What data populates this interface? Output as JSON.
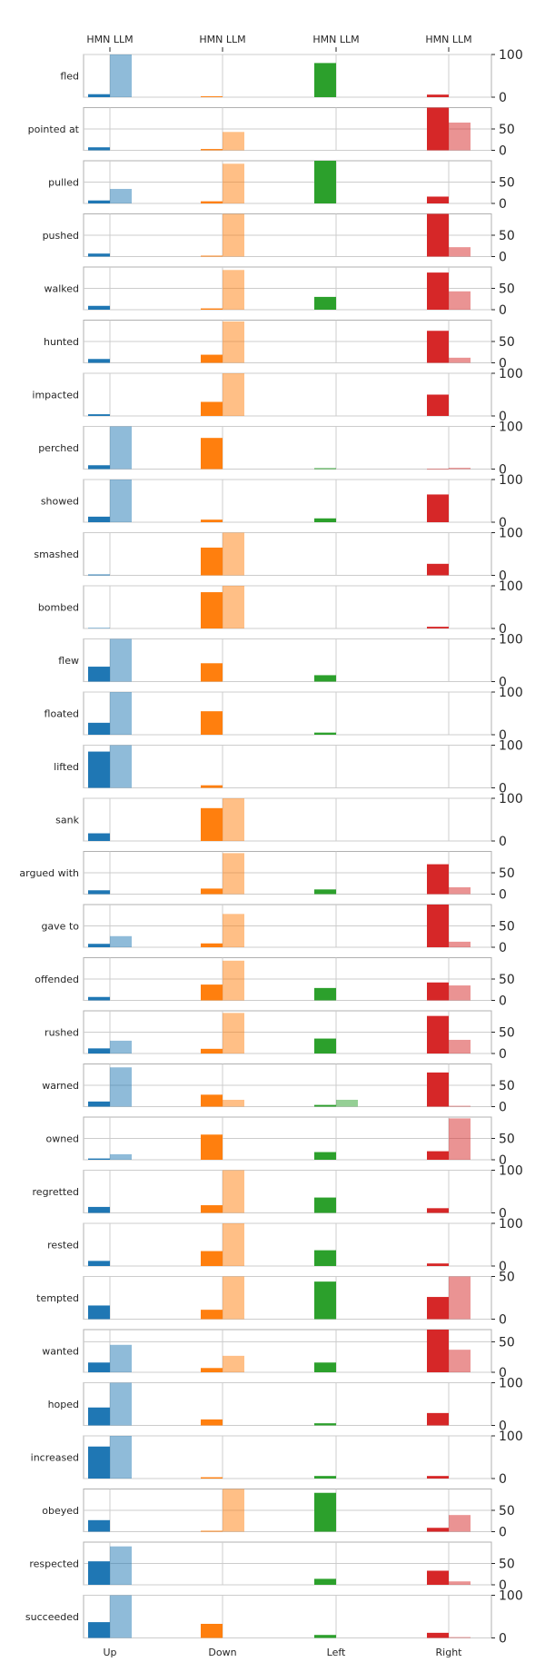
{
  "chart_data": {
    "type": "bar",
    "top_tick_labels": [
      "HMN LLM",
      "HMN LLM",
      "HMN LLM",
      "HMN LLM"
    ],
    "categories": [
      "Up",
      "Down",
      "Left",
      "Right"
    ],
    "series": [
      {
        "name": "HMN",
        "role": "human"
      },
      {
        "name": "LLM",
        "role": "model"
      }
    ],
    "colors": {
      "Up": "#1f77b4",
      "Down": "#ff7f0e",
      "Left": "#2ca02c",
      "Right": "#d62728",
      "llm_alpha": 0.5,
      "grid": "#cccccc",
      "frame": "#b0b0b0"
    },
    "grid": true,
    "panels": [
      {
        "verb": "fled",
        "ylim": [
          0,
          100
        ],
        "yticks": [
          0,
          100
        ],
        "hmn": [
          7,
          2,
          80,
          6
        ],
        "llm": [
          100,
          0,
          0,
          0
        ]
      },
      {
        "verb": "pointed at",
        "ylim": [
          0,
          100
        ],
        "yticks": [
          0,
          50
        ],
        "hmn": [
          7,
          3,
          0,
          100
        ],
        "llm": [
          0,
          43,
          0,
          65
        ]
      },
      {
        "verb": "pulled",
        "ylim": [
          0,
          100
        ],
        "yticks": [
          0,
          50
        ],
        "hmn": [
          7,
          5,
          100,
          16
        ],
        "llm": [
          34,
          93,
          0,
          0
        ]
      },
      {
        "verb": "pushed",
        "ylim": [
          0,
          100
        ],
        "yticks": [
          0,
          50
        ],
        "hmn": [
          7,
          2,
          0,
          100
        ],
        "llm": [
          0,
          100,
          0,
          22
        ]
      },
      {
        "verb": "walked",
        "ylim": [
          0,
          100
        ],
        "yticks": [
          0,
          50
        ],
        "hmn": [
          9,
          3,
          30,
          87
        ],
        "llm": [
          0,
          93,
          0,
          43
        ]
      },
      {
        "verb": "hunted",
        "ylim": [
          0,
          100
        ],
        "yticks": [
          0,
          50
        ],
        "hmn": [
          9,
          19,
          0,
          75
        ],
        "llm": [
          0,
          97,
          0,
          12
        ]
      },
      {
        "verb": "impacted",
        "ylim": [
          0,
          100
        ],
        "yticks": [
          0,
          100
        ],
        "hmn": [
          4,
          33,
          0,
          50
        ],
        "llm": [
          0,
          100,
          0,
          0
        ]
      },
      {
        "verb": "perched",
        "ylim": [
          0,
          100
        ],
        "yticks": [
          0,
          100
        ],
        "hmn": [
          9,
          73,
          2,
          1
        ],
        "llm": [
          100,
          0,
          0,
          3
        ]
      },
      {
        "verb": "showed",
        "ylim": [
          0,
          100
        ],
        "yticks": [
          0,
          100
        ],
        "hmn": [
          13,
          6,
          9,
          65
        ],
        "llm": [
          100,
          0,
          0,
          0
        ]
      },
      {
        "verb": "smashed",
        "ylim": [
          0,
          100
        ],
        "yticks": [
          0,
          100
        ],
        "hmn": [
          2,
          65,
          0,
          27
        ],
        "llm": [
          0,
          100,
          0,
          0
        ]
      },
      {
        "verb": "bombed",
        "ylim": [
          0,
          100
        ],
        "yticks": [
          0,
          100
        ],
        "hmn": [
          1,
          85,
          0,
          4
        ],
        "llm": [
          0,
          100,
          0,
          0
        ]
      },
      {
        "verb": "flew",
        "ylim": [
          0,
          100
        ],
        "yticks": [
          0,
          100
        ],
        "hmn": [
          35,
          43,
          15,
          0
        ],
        "llm": [
          100,
          0,
          0,
          0
        ]
      },
      {
        "verb": "floated",
        "ylim": [
          0,
          100
        ],
        "yticks": [
          0,
          100
        ],
        "hmn": [
          28,
          55,
          5,
          0
        ],
        "llm": [
          100,
          0,
          0,
          0
        ]
      },
      {
        "verb": "lifted",
        "ylim": [
          0,
          100
        ],
        "yticks": [
          0,
          100
        ],
        "hmn": [
          85,
          6,
          0,
          0
        ],
        "llm": [
          100,
          0,
          0,
          0
        ]
      },
      {
        "verb": "sank",
        "ylim": [
          0,
          100
        ],
        "yticks": [
          0,
          100
        ],
        "hmn": [
          18,
          77,
          0,
          0
        ],
        "llm": [
          0,
          100,
          0,
          0
        ]
      },
      {
        "verb": "argued with",
        "ylim": [
          0,
          100
        ],
        "yticks": [
          0,
          50
        ],
        "hmn": [
          9,
          13,
          11,
          70
        ],
        "llm": [
          0,
          96,
          0,
          16
        ]
      },
      {
        "verb": "gave to",
        "ylim": [
          0,
          100
        ],
        "yticks": [
          0,
          50
        ],
        "hmn": [
          8,
          9,
          0,
          100
        ],
        "llm": [
          26,
          78,
          0,
          13
        ]
      },
      {
        "verb": "offended",
        "ylim": [
          0,
          100
        ],
        "yticks": [
          0,
          50
        ],
        "hmn": [
          8,
          37,
          29,
          42
        ],
        "llm": [
          0,
          93,
          0,
          35
        ]
      },
      {
        "verb": "rushed",
        "ylim": [
          0,
          100
        ],
        "yticks": [
          0,
          50
        ],
        "hmn": [
          12,
          11,
          35,
          88
        ],
        "llm": [
          30,
          95,
          0,
          32
        ]
      },
      {
        "verb": "warned",
        "ylim": [
          0,
          100
        ],
        "yticks": [
          0,
          50
        ],
        "hmn": [
          12,
          28,
          4,
          80
        ],
        "llm": [
          92,
          16,
          16,
          2
        ]
      },
      {
        "verb": "owned",
        "ylim": [
          0,
          100
        ],
        "yticks": [
          0,
          50
        ],
        "hmn": [
          3,
          59,
          18,
          20
        ],
        "llm": [
          13,
          0,
          0,
          97
        ]
      },
      {
        "verb": "regretted",
        "ylim": [
          0,
          100
        ],
        "yticks": [
          0,
          100
        ],
        "hmn": [
          14,
          18,
          36,
          11
        ],
        "llm": [
          0,
          100,
          0,
          0
        ]
      },
      {
        "verb": "rested",
        "ylim": [
          0,
          100
        ],
        "yticks": [
          0,
          100
        ],
        "hmn": [
          12,
          35,
          37,
          6
        ],
        "llm": [
          0,
          100,
          0,
          0
        ]
      },
      {
        "verb": "tempted",
        "ylim": [
          0,
          50
        ],
        "yticks": [
          0,
          50
        ],
        "hmn": [
          16,
          11,
          44,
          26
        ],
        "llm": [
          0,
          50,
          0,
          50
        ]
      },
      {
        "verb": "wanted",
        "ylim": [
          0,
          70
        ],
        "yticks": [
          0,
          50
        ],
        "hmn": [
          16,
          7,
          16,
          70
        ],
        "llm": [
          45,
          27,
          0,
          37
        ]
      },
      {
        "verb": "hoped",
        "ylim": [
          0,
          100
        ],
        "yticks": [
          0,
          100
        ],
        "hmn": [
          42,
          14,
          5,
          29
        ],
        "llm": [
          100,
          0,
          0,
          0
        ]
      },
      {
        "verb": "increased",
        "ylim": [
          0,
          100
        ],
        "yticks": [
          0,
          100
        ],
        "hmn": [
          75,
          3,
          6,
          6
        ],
        "llm": [
          100,
          0,
          0,
          0
        ]
      },
      {
        "verb": "obeyed",
        "ylim": [
          0,
          100
        ],
        "yticks": [
          0,
          50
        ],
        "hmn": [
          27,
          2,
          91,
          9
        ],
        "llm": [
          0,
          100,
          0,
          39
        ]
      },
      {
        "verb": "respected",
        "ylim": [
          0,
          100
        ],
        "yticks": [
          0,
          50
        ],
        "hmn": [
          55,
          0,
          14,
          33
        ],
        "llm": [
          90,
          0,
          0,
          8
        ]
      },
      {
        "verb": "succeeded",
        "ylim": [
          0,
          100
        ],
        "yticks": [
          0,
          100
        ],
        "hmn": [
          37,
          33,
          7,
          12
        ],
        "llm": [
          100,
          0,
          0,
          2
        ]
      }
    ]
  }
}
